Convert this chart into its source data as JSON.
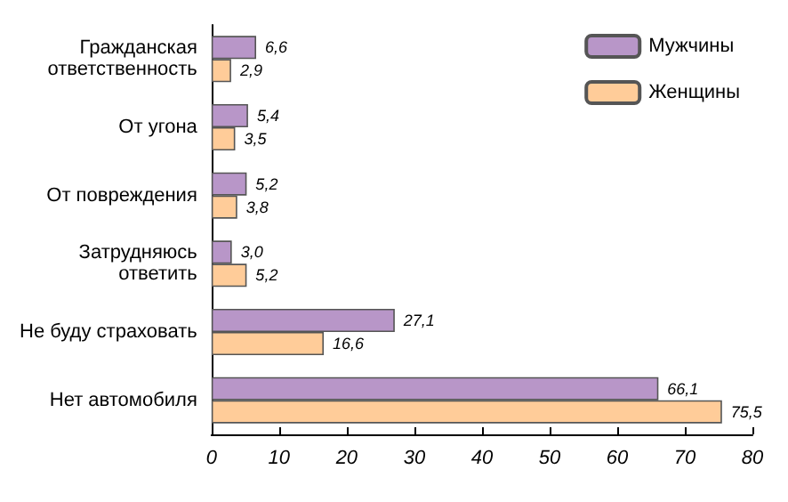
{
  "chart_data": {
    "type": "bar",
    "orientation": "horizontal",
    "categories": [
      "Гражданская\nответственность",
      "От угона",
      "От повреждения",
      "Затрудняюсь\nответить",
      "Не буду страховать",
      "Нет автомобиля"
    ],
    "series": [
      {
        "name": "Мужчины",
        "color": "#b896c8",
        "values": [
          6.6,
          5.4,
          5.2,
          3.0,
          27.1,
          66.1
        ],
        "value_labels": [
          "6,6",
          "5,4",
          "5,2",
          "3,0",
          "27,1",
          "66,1"
        ]
      },
      {
        "name": "Женщины",
        "color": "#ffcc99",
        "values": [
          2.9,
          3.5,
          3.8,
          5.2,
          16.6,
          75.5
        ],
        "value_labels": [
          "2,9",
          "3,5",
          "3,8",
          "5,2",
          "16,6",
          "75,5"
        ]
      }
    ],
    "xlim": [
      0,
      80
    ],
    "xticks": [
      0,
      10,
      20,
      30,
      40,
      50,
      60,
      70,
      80
    ],
    "grid": false,
    "legend": "top right"
  }
}
